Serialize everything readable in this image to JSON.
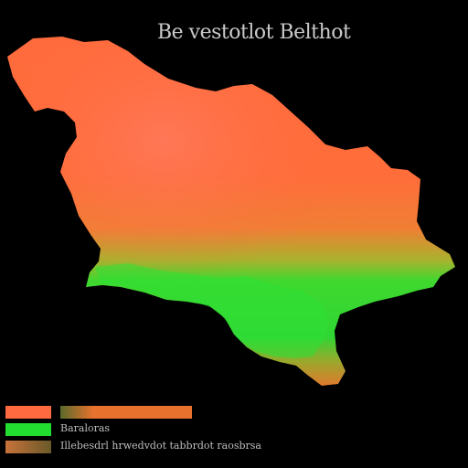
{
  "map": {
    "title": "Be vestotlot Belthot",
    "colors": {
      "background": "#000000",
      "high": "#ff6b3d",
      "mid": "#ff8a3a",
      "low": "#22e033",
      "transition": "#8fbf2e"
    }
  },
  "legend": {
    "items": [
      {
        "color": "#ff6a40",
        "bar_color": "#e8712e",
        "label": ""
      },
      {
        "color": "#22dd2f",
        "label": "Baraloras"
      },
      {
        "color": "#c8723a",
        "label": "Illebesdrl hrwedvdot tabbrdot raosbrsa"
      }
    ]
  }
}
